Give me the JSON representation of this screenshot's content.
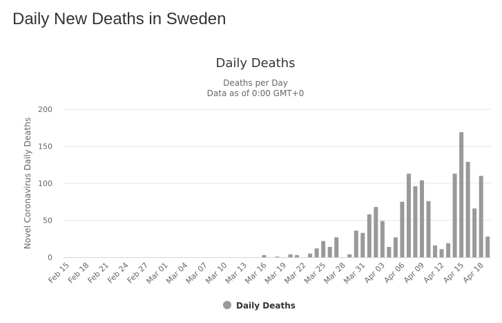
{
  "page": {
    "title": "Daily New Deaths in Sweden"
  },
  "colors": {
    "bar": "#999999",
    "grid": "#e6e6e6",
    "axis": "#ccd6eb",
    "title": "#333333",
    "text": "#666666"
  },
  "chart_data": {
    "type": "bar",
    "title": "Daily Deaths",
    "subtitle": [
      "Deaths per Day",
      "Data as of 0:00 GMT+0"
    ],
    "xlabel": "",
    "ylabel": "Novel Coronavirus Daily Deaths",
    "ylim": [
      0,
      200
    ],
    "yticks": [
      0,
      50,
      100,
      150,
      200
    ],
    "grid": true,
    "legend": {
      "position": "bottom-center",
      "entries": [
        "Daily Deaths"
      ]
    },
    "tick_labels": [
      "Feb 15",
      "Feb 18",
      "Feb 21",
      "Feb 24",
      "Feb 27",
      "Mar 01",
      "Mar 04",
      "Mar 07",
      "Mar 10",
      "Mar 13",
      "Mar 16",
      "Mar 19",
      "Mar 22",
      "Mar 25",
      "Mar 28",
      "Mar 31",
      "Apr 03",
      "Apr 06",
      "Apr 09",
      "Apr 12",
      "Apr 15",
      "Apr 18"
    ],
    "categories": [
      "Feb 15",
      "Feb 16",
      "Feb 17",
      "Feb 18",
      "Feb 19",
      "Feb 20",
      "Feb 21",
      "Feb 22",
      "Feb 23",
      "Feb 24",
      "Feb 25",
      "Feb 26",
      "Feb 27",
      "Feb 28",
      "Feb 29",
      "Mar 01",
      "Mar 02",
      "Mar 03",
      "Mar 04",
      "Mar 05",
      "Mar 06",
      "Mar 07",
      "Mar 08",
      "Mar 09",
      "Mar 10",
      "Mar 11",
      "Mar 12",
      "Mar 13",
      "Mar 14",
      "Mar 15",
      "Mar 16",
      "Mar 17",
      "Mar 18",
      "Mar 19",
      "Mar 20",
      "Mar 21",
      "Mar 22",
      "Mar 23",
      "Mar 24",
      "Mar 25",
      "Mar 26",
      "Mar 27",
      "Mar 28",
      "Mar 29",
      "Mar 30",
      "Mar 31",
      "Apr 01",
      "Apr 02",
      "Apr 03",
      "Apr 04",
      "Apr 05",
      "Apr 06",
      "Apr 07",
      "Apr 08",
      "Apr 09",
      "Apr 10",
      "Apr 11",
      "Apr 12",
      "Apr 13",
      "Apr 14",
      "Apr 15",
      "Apr 16",
      "Apr 17",
      "Apr 18",
      "Apr 19"
    ],
    "series": [
      {
        "name": "Daily Deaths",
        "values": [
          0,
          0,
          0,
          0,
          0,
          0,
          0,
          0,
          0,
          0,
          0,
          0,
          0,
          0,
          0,
          0,
          0,
          0,
          0,
          0,
          0,
          0,
          0,
          0,
          0,
          0,
          0,
          0,
          0,
          0,
          3,
          0,
          1,
          0,
          4,
          3,
          0,
          5,
          12,
          22,
          14,
          27,
          0,
          4,
          36,
          33,
          58,
          68,
          49,
          14,
          27,
          75,
          113,
          96,
          104,
          76,
          16,
          11,
          19,
          113,
          169,
          129,
          66,
          110,
          28
        ]
      }
    ]
  }
}
